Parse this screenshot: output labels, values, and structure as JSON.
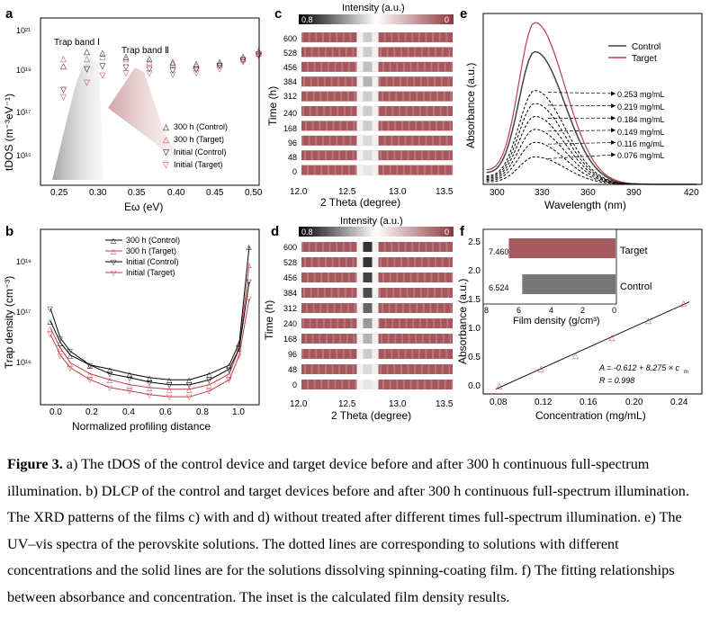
{
  "panels": {
    "a": {
      "label": "a",
      "annotations": [
        "Trap band Ⅰ",
        "Trap band Ⅱ"
      ],
      "ylabel": "tDOS (m⁻³eV⁻¹)",
      "xlabel": "Eω (eV)",
      "xticks": [
        "0.25",
        "0.30",
        "0.35",
        "0.40",
        "0.45",
        "0.50"
      ],
      "yticks": [
        "10²¹",
        "10¹⁹",
        "10¹⁷",
        "10¹⁵"
      ],
      "legend": [
        "300 h (Control)",
        "300 h (Target)",
        "Initial (Control)",
        "Initial (Target)"
      ]
    },
    "b": {
      "label": "b",
      "ylabel": "Trap density (cm⁻³)",
      "xlabel": "Normalized profiling distance",
      "xticks": [
        "0.0",
        "0.2",
        "0.4",
        "0.6",
        "0.8",
        "1.0"
      ],
      "yticks": [
        "10¹⁸",
        "10¹⁷",
        "10¹⁶"
      ],
      "legend": [
        "300 h (Control)",
        "300 h (Target)",
        "Initial (Control)",
        "Initial (Target)"
      ]
    },
    "c": {
      "label": "c",
      "colorbar_title": "Intensity (a.u.)",
      "cb_min": "0.8",
      "cb_max": "0",
      "ylabel": "Time (h)",
      "xlabel": "2 Theta (degree)",
      "xticks": [
        "12.0",
        "12.5",
        "13.0",
        "13.5"
      ],
      "yticks": [
        "600",
        "528",
        "456",
        "384",
        "312",
        "240",
        "168",
        "96",
        "48",
        "0"
      ]
    },
    "d": {
      "label": "d",
      "colorbar_title": "Intensity (a.u.)",
      "cb_min": "0.8",
      "cb_max": "0",
      "ylabel": "Time (h)",
      "xlabel": "2 Theta (degree)",
      "xticks": [
        "12.0",
        "12.5",
        "13.0",
        "13.5"
      ],
      "yticks": [
        "600",
        "528",
        "456",
        "384",
        "312",
        "240",
        "168",
        "96",
        "48",
        "0"
      ]
    },
    "e": {
      "label": "e",
      "ylabel": "Absorbance (a.u.)",
      "xlabel": "Wavelength (nm)",
      "xticks": [
        "300",
        "330",
        "360",
        "390",
        "420"
      ],
      "legend": [
        "Control",
        "Target"
      ],
      "concentrations": [
        "0.253 mg/mL",
        "0.219 mg/mL",
        "0.184 mg/mL",
        "0.149 mg/mL",
        "0.116 mg/mL",
        "0.076 mg/mL"
      ]
    },
    "f": {
      "label": "f",
      "ylabel": "Absorbance (a.u.)",
      "xlabel": "Concentration (mg/mL)",
      "xticks": [
        "0.08",
        "0.12",
        "0.16",
        "0.20",
        "0.24"
      ],
      "yticks": [
        "0.0",
        "0.5",
        "1.0",
        "1.5",
        "2.0",
        "2.5"
      ],
      "equation": "A = -0.612 + 8.275 × c",
      "equation_sub": "m",
      "r_value": "R = 0.998",
      "inset": {
        "xlabel": "Film density (g/cm³)",
        "xticks": [
          "8",
          "6",
          "4",
          "2",
          "0"
        ],
        "bars": [
          {
            "label": "Target",
            "value_text": "7.460",
            "value": 7.46,
            "color": "#a65a5f"
          },
          {
            "label": "Control",
            "value_text": "6.524",
            "value": 6.524,
            "color": "#777777"
          }
        ]
      }
    }
  },
  "chart_data": [
    {
      "type": "scatter",
      "title": "",
      "xlabel": "Eω (eV)",
      "ylabel": "tDOS (m⁻³eV⁻¹)",
      "xlim": [
        0.22,
        0.5
      ],
      "yscale": "log",
      "series": [
        {
          "name": "300 h (Control)",
          "x": [
            0.25,
            0.28,
            0.3,
            0.33,
            0.36,
            0.39,
            0.42,
            0.45,
            0.48,
            0.5
          ],
          "y": [
            2e+19,
            8e+19,
            7e+19,
            5e+19,
            4e+19,
            3e+19,
            2.5e+19,
            3e+19,
            5e+19,
            9e+19
          ]
        },
        {
          "name": "300 h (Target)",
          "x": [
            0.25,
            0.28,
            0.3,
            0.33,
            0.36,
            0.39,
            0.42,
            0.45,
            0.48,
            0.5
          ],
          "y": [
            4e+19,
            4e+19,
            5e+19,
            4e+19,
            3e+19,
            2.5e+19,
            2e+19,
            2.5e+19,
            4e+19,
            7e+19
          ]
        },
        {
          "name": "Initial (Control)",
          "x": [
            0.25,
            0.28,
            0.3,
            0.33,
            0.36,
            0.39,
            0.42,
            0.45,
            0.48,
            0.5
          ],
          "y": [
            2e+18,
            1.5e+19,
            2e+19,
            1.8e+19,
            1.5e+19,
            1.3e+19,
            1.4e+19,
            2e+19,
            3.5e+19,
            6e+19
          ]
        },
        {
          "name": "Initial (Target)",
          "x": [
            0.25,
            0.28,
            0.3,
            0.33,
            0.36,
            0.39,
            0.42,
            0.45,
            0.48,
            0.5
          ],
          "y": [
            1e+18,
            4e+18,
            8e+18,
            1e+19,
            1e+19,
            9e+18,
            1e+19,
            1.5e+19,
            3e+19,
            5e+19
          ]
        }
      ]
    },
    {
      "type": "line",
      "title": "",
      "xlabel": "Normalized profiling distance",
      "ylabel": "Trap density (cm⁻³)",
      "xlim": [
        -0.05,
        1.05
      ],
      "yscale": "log",
      "series": [
        {
          "name": "300 h (Control)",
          "x": [
            0,
            0.05,
            0.1,
            0.2,
            0.3,
            0.4,
            0.5,
            0.6,
            0.7,
            0.8,
            0.9,
            0.95,
            1.0
          ],
          "y": [
            1.2e+17,
            5e+16,
            3e+16,
            2e+16,
            1.7e+16,
            1.4e+16,
            1.2e+16,
            1.1e+16,
            1.1e+16,
            1.4e+16,
            2e+16,
            5e+16,
            2.5e+18
          ]
        },
        {
          "name": "300 h (Target)",
          "x": [
            0,
            0.05,
            0.1,
            0.2,
            0.3,
            0.4,
            0.5,
            0.6,
            0.7,
            0.8,
            0.9,
            0.95,
            1.0
          ],
          "y": [
            9e+16,
            4e+16,
            2.2e+16,
            1.4e+16,
            1.1e+16,
            9000000000000000.0,
            8000000000000000.0,
            7500000000000000.0,
            7500000000000000.0,
            9000000000000000.0,
            1.4e+16,
            4e+16,
            1.2e+18
          ]
        },
        {
          "name": "Initial (Control)",
          "x": [
            0,
            0.05,
            0.1,
            0.2,
            0.3,
            0.4,
            0.5,
            0.6,
            0.7,
            0.8,
            0.9,
            0.95,
            1.0
          ],
          "y": [
            2e+17,
            6e+16,
            3.5e+16,
            2e+16,
            1.4e+16,
            1.2e+16,
            1e+16,
            9000000000000000.0,
            9000000000000000.0,
            1.1e+16,
            1.7e+16,
            4e+16,
            6e+17
          ]
        },
        {
          "name": "Initial (Target)",
          "x": [
            0,
            0.05,
            0.1,
            0.2,
            0.3,
            0.4,
            0.5,
            0.6,
            0.7,
            0.8,
            0.9,
            0.95,
            1.0
          ],
          "y": [
            7e+16,
            3e+16,
            1.8e+16,
            1.1e+16,
            8000000000000000.0,
            7000000000000000.0,
            6000000000000000.0,
            5500000000000000.0,
            5500000000000000.0,
            7000000000000000.0,
            1.1e+16,
            3e+16,
            3e+17
          ]
        }
      ]
    },
    {
      "type": "heatmap",
      "title": "",
      "xlabel": "2 Theta (degree)",
      "ylabel": "Time (h)",
      "xlim": [
        12.0,
        13.6
      ],
      "rows": [
        "600",
        "528",
        "456",
        "384",
        "312",
        "240",
        "168",
        "96",
        "48",
        "0"
      ],
      "peak_position": 12.7,
      "peak_intensity": [
        0.2,
        0.2,
        0.25,
        0.3,
        0.2,
        0.2,
        0.2,
        0.15,
        0.15,
        0.1
      ]
    },
    {
      "type": "heatmap",
      "title": "",
      "xlabel": "2 Theta (degree)",
      "ylabel": "Time (h)",
      "xlim": [
        12.0,
        13.6
      ],
      "rows": [
        "600",
        "528",
        "456",
        "384",
        "312",
        "240",
        "168",
        "96",
        "48",
        "0"
      ],
      "peak_position": 12.7,
      "peak_intensity": [
        0.8,
        0.8,
        0.75,
        0.7,
        0.6,
        0.4,
        0.3,
        0.2,
        0.15,
        0.1
      ]
    },
    {
      "type": "line",
      "title": "",
      "xlabel": "Wavelength (nm)",
      "ylabel": "Absorbance (a.u.)",
      "xlim": [
        290,
        425
      ],
      "series": [
        {
          "name": "Control",
          "peak_x": 322,
          "peak_y": 0.82
        },
        {
          "name": "Target",
          "peak_x": 322,
          "peak_y": 1.0
        },
        {
          "name": "0.253 mg/mL",
          "peak_x": 322,
          "peak_y": 0.58
        },
        {
          "name": "0.219 mg/mL",
          "peak_x": 322,
          "peak_y": 0.5
        },
        {
          "name": "0.184 mg/mL",
          "peak_x": 322,
          "peak_y": 0.42
        },
        {
          "name": "0.149 mg/mL",
          "peak_x": 322,
          "peak_y": 0.34
        },
        {
          "name": "0.116 mg/mL",
          "peak_x": 322,
          "peak_y": 0.26
        },
        {
          "name": "0.076 mg/mL",
          "peak_x": 322,
          "peak_y": 0.17
        }
      ]
    },
    {
      "type": "scatter",
      "title": "",
      "xlabel": "Concentration (mg/mL)",
      "ylabel": "Absorbance (a.u.)",
      "xlim": [
        0.06,
        0.27
      ],
      "ylim": [
        -0.1,
        2.8
      ],
      "series": [
        {
          "name": "",
          "x": [
            0.076,
            0.116,
            0.149,
            0.184,
            0.219,
            0.253
          ],
          "y": [
            0.05,
            0.35,
            0.58,
            0.9,
            1.2,
            1.5
          ]
        }
      ]
    },
    {
      "type": "bar",
      "title": "",
      "xlabel": "Film density (g/cm³)",
      "categories": [
        "Target",
        "Control"
      ],
      "values": [
        7.46,
        6.524
      ],
      "xlim": [
        0,
        9
      ]
    }
  ],
  "caption": {
    "bold": "Figure 3.",
    "text": " a) The tDOS of the control device and target device before and after 300 h continuous full-spectrum illumination. b) DLCP of the control and target devices before and after 300 h continuous full-spectrum illumination. The XRD patterns of the films c) with and d) without treated after different times full-spectrum illumination. e) The UV–vis spectra of the perovskite solutions. The dotted lines are corresponding to solutions with different concentrations and the solid lines are for the solutions dissolving spinning-coating film. f) The fitting relationships between absorbance and concentration. The inset is the calculated film density results."
  }
}
